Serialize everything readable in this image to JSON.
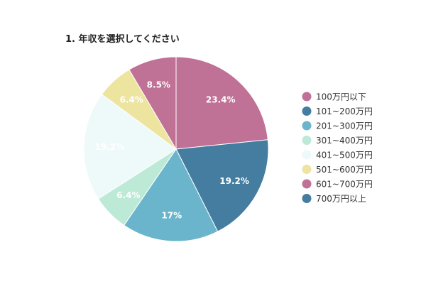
{
  "chart_data": {
    "type": "pie",
    "title": "1. 年収を選択してください",
    "categories": [
      "100万円以下",
      "101~200万円",
      "201~300万円",
      "301~400万円",
      "401~500万円",
      "501~600万円",
      "601~700万円",
      "700万円以上"
    ],
    "values": [
      23.4,
      19.2,
      17,
      6.4,
      19.2,
      6.4,
      8.5,
      0
    ],
    "data_labels": [
      "23.4%",
      "19.2%",
      "17%",
      "6.4%",
      "19.2%",
      "6.4%",
      "8.5%",
      ""
    ],
    "colors": [
      "#c07196",
      "#447da0",
      "#6ab5cb",
      "#bde9d7",
      "#eef9f9",
      "#ede49f",
      "#c07196",
      "#447da0"
    ],
    "legend_position": "right"
  }
}
